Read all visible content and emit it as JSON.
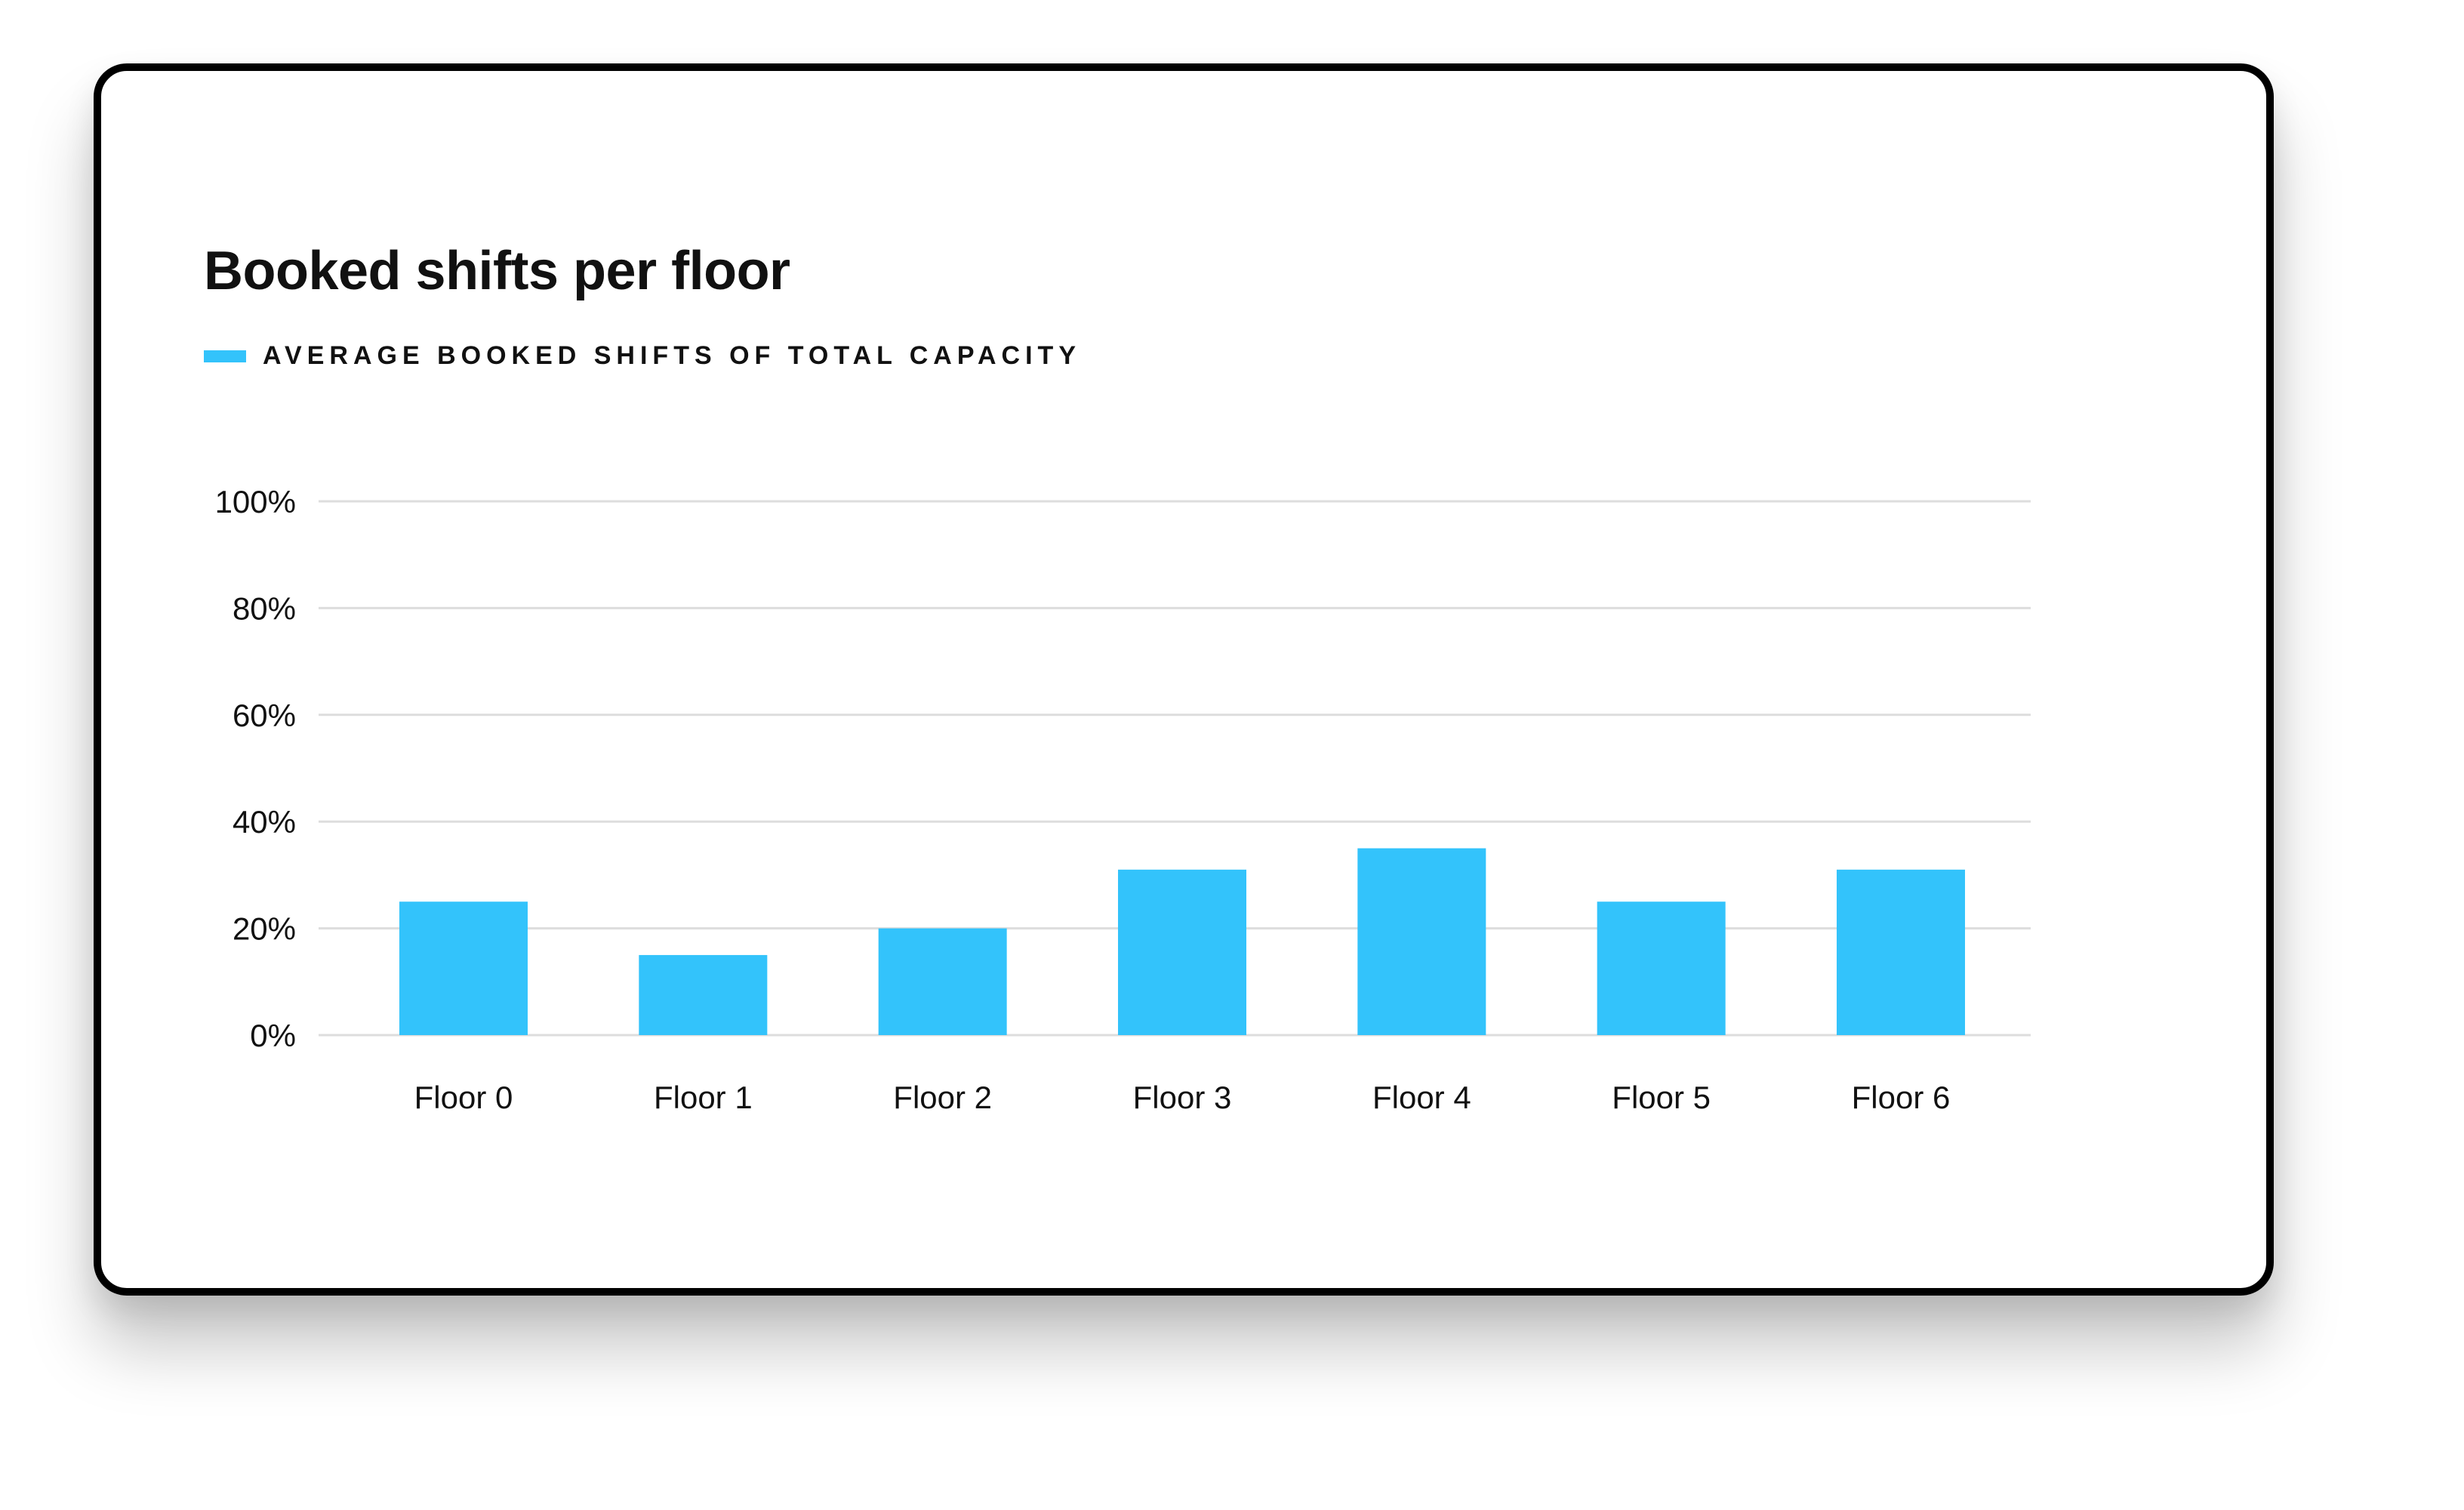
{
  "chart_data": {
    "type": "bar",
    "title": "Booked shifts per floor",
    "xlabel": "",
    "ylabel": "",
    "categories": [
      "Floor 0",
      "Floor 1",
      "Floor 2",
      "Floor 3",
      "Floor 4",
      "Floor 5",
      "Floor 6"
    ],
    "series": [
      {
        "name": "AVERAGE BOOKED SHIFTS OF TOTAL CAPACITY",
        "values": [
          25,
          15,
          20,
          31,
          35,
          25,
          31
        ]
      }
    ],
    "ylim": [
      0,
      100
    ],
    "yticks": [
      0,
      20,
      40,
      60,
      80,
      100
    ],
    "ytick_labels": [
      "0%",
      "20%",
      "40%",
      "60%",
      "80%",
      "100%"
    ],
    "grid": true,
    "legend_position": "top-left",
    "colors": {
      "bar": "#33c3fb",
      "gridline": "#dddddd",
      "text": "#111111"
    }
  }
}
